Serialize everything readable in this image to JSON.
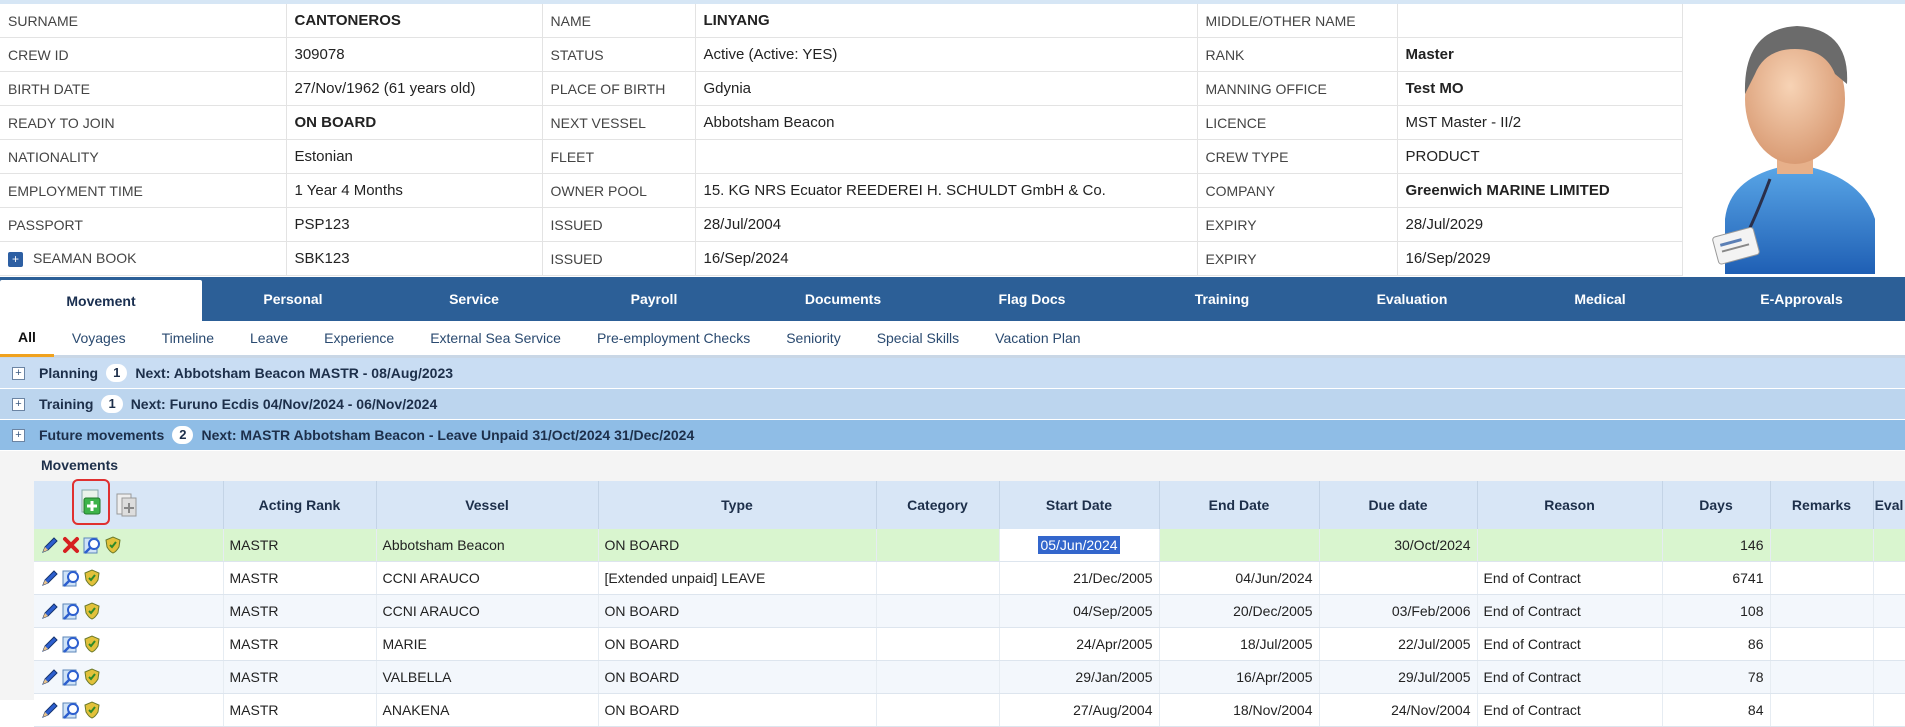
{
  "info": [
    [
      {
        "l": "SURNAME"
      },
      {
        "v": "CANTONEROS",
        "b": true
      },
      {
        "l": "NAME"
      },
      {
        "v": "LINYANG",
        "b": true
      },
      {
        "l": "MIDDLE/OTHER NAME"
      },
      {
        "v": ""
      }
    ],
    [
      {
        "l": "CREW ID"
      },
      {
        "v": "309078"
      },
      {
        "l": "STATUS"
      },
      {
        "v": "Active (Active: YES)"
      },
      {
        "l": "RANK"
      },
      {
        "v": "Master",
        "b": true
      }
    ],
    [
      {
        "l": "BIRTH DATE"
      },
      {
        "v": "27/Nov/1962 (61 years old)"
      },
      {
        "l": "PLACE OF BIRTH"
      },
      {
        "v": "Gdynia"
      },
      {
        "l": "MANNING OFFICE"
      },
      {
        "v": "Test MO",
        "b": true
      }
    ],
    [
      {
        "l": "READY TO JOIN"
      },
      {
        "v": "ON BOARD",
        "b": true
      },
      {
        "l": "NEXT VESSEL"
      },
      {
        "v": "Abbotsham Beacon"
      },
      {
        "l": "LICENCE"
      },
      {
        "v": "MST Master - II/2"
      }
    ],
    [
      {
        "l": "NATIONALITY"
      },
      {
        "v": "Estonian"
      },
      {
        "l": "FLEET"
      },
      {
        "v": ""
      },
      {
        "l": "CREW TYPE"
      },
      {
        "v": "PRODUCT"
      }
    ],
    [
      {
        "l": "EMPLOYMENT TIME"
      },
      {
        "v": "1 Year 4 Months"
      },
      {
        "l": "OWNER POOL"
      },
      {
        "v": "15. KG NRS Ecuator REEDEREI H. SCHULDT GmbH & Co."
      },
      {
        "l": "COMPANY"
      },
      {
        "v": "Greenwich MARINE LIMITED",
        "b": true
      }
    ],
    [
      {
        "l": "PASSPORT"
      },
      {
        "v": "PSP123"
      },
      {
        "l": "ISSUED"
      },
      {
        "v": "28/Jul/2004"
      },
      {
        "l": "EXPIRY"
      },
      {
        "v": "28/Jul/2029"
      }
    ],
    [
      {
        "l": "SEAMAN BOOK",
        "plus": true
      },
      {
        "v": "SBK123"
      },
      {
        "l": "ISSUED"
      },
      {
        "v": "16/Sep/2024"
      },
      {
        "l": "EXPIRY"
      },
      {
        "v": "16/Sep/2029"
      }
    ]
  ],
  "tabs": [
    "Movement",
    "Personal",
    "Service",
    "Payroll",
    "Documents",
    "Flag Docs",
    "Training",
    "Evaluation",
    "Medical",
    "E-Approvals"
  ],
  "active_tab": "Movement",
  "subtabs": [
    "All",
    "Voyages",
    "Timeline",
    "Leave",
    "Experience",
    "External Sea Service",
    "Pre-employment Checks",
    "Seniority",
    "Special Skills",
    "Vacation Plan"
  ],
  "sections": [
    {
      "title": "Planning",
      "count": "1",
      "next": "Next: Abbotsham Beacon MASTR - 08/Aug/2023",
      "color": "#c9ddf3"
    },
    {
      "title": "Training",
      "count": "1",
      "next": "Next: Furuno Ecdis 04/Nov/2024 - 06/Nov/2024",
      "color": "#bcd5ee"
    },
    {
      "title": "Future movements",
      "count": "2",
      "next": "Next: MASTR Abbotsham Beacon - Leave Unpaid 31/Oct/2024 31/Dec/2024",
      "color": "#8fbde6"
    }
  ],
  "movements_title": "Movements",
  "columns": [
    "Acting Rank",
    "Vessel",
    "Type",
    "Category",
    "Start Date",
    "End Date",
    "Due date",
    "Reason",
    "Days",
    "Remarks",
    "Eval"
  ],
  "rows": [
    {
      "rank": "MASTR",
      "vessel": "Abbotsham Beacon",
      "type": "ON BOARD",
      "category": "",
      "start": "05/Jun/2024",
      "end": "",
      "due": "30/Oct/2024",
      "reason": "",
      "days": "146",
      "remarks": "",
      "eval": ""
    },
    {
      "rank": "MASTR",
      "vessel": "CCNI ARAUCO",
      "type": "[Extended unpaid] LEAVE",
      "category": "",
      "start": "21/Dec/2005",
      "end": "04/Jun/2024",
      "due": "",
      "reason": "End of Contract",
      "days": "6741",
      "remarks": "",
      "eval": ""
    },
    {
      "rank": "MASTR",
      "vessel": "CCNI ARAUCO",
      "type": "ON BOARD",
      "category": "",
      "start": "04/Sep/2005",
      "end": "20/Dec/2005",
      "due": "03/Feb/2006",
      "reason": "End of Contract",
      "days": "108",
      "remarks": "",
      "eval": ""
    },
    {
      "rank": "MASTR",
      "vessel": "MARIE",
      "type": "ON BOARD",
      "category": "",
      "start": "24/Apr/2005",
      "end": "18/Jul/2005",
      "due": "22/Jul/2005",
      "reason": "End of Contract",
      "days": "86",
      "remarks": "",
      "eval": ""
    },
    {
      "rank": "MASTR",
      "vessel": "VALBELLA",
      "type": "ON BOARD",
      "category": "",
      "start": "29/Jan/2005",
      "end": "16/Apr/2005",
      "due": "29/Jul/2005",
      "reason": "End of Contract",
      "days": "78",
      "remarks": "",
      "eval": ""
    },
    {
      "rank": "MASTR",
      "vessel": "ANAKENA",
      "type": "ON BOARD",
      "category": "",
      "start": "27/Aug/2004",
      "end": "18/Nov/2004",
      "due": "24/Nov/2004",
      "reason": "End of Contract",
      "days": "84",
      "remarks": "",
      "eval": ""
    }
  ]
}
